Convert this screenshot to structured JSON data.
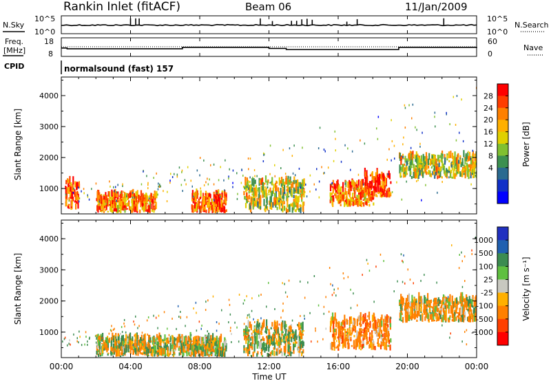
{
  "header": {
    "station": "Rankin Inlet (fitACF)",
    "beam": "Beam 06",
    "date": "11/Jan/2009"
  },
  "noise_panel": {
    "left_label": "N.Sky",
    "right_label": "N.Search",
    "left_ticks": [
      "10^5",
      "10^0"
    ],
    "right_ticks": [
      "10^5",
      "10^0"
    ]
  },
  "freq_panel": {
    "left_label_1": "Freq.",
    "left_label_2": "[MHz]",
    "right_label": "Nave",
    "left_ticks": [
      "18",
      "8"
    ],
    "right_ticks": [
      "60",
      "0"
    ]
  },
  "cpid": {
    "label": "CPID",
    "value": "normalsound (fast) 157"
  },
  "time_axis": {
    "label": "Time UT",
    "ticks": [
      "00:00",
      "04:00",
      "08:00",
      "12:00",
      "16:00",
      "20:00",
      "00:00"
    ]
  },
  "power_panel": {
    "ylabel": "Slant Range [km]",
    "yticks": [
      "4000",
      "3000",
      "2000",
      "1000"
    ],
    "colorbar_label": "Power [dB]",
    "colorbar_ticks": [
      "28",
      "24",
      "20",
      "16",
      "12",
      "8",
      "4"
    ],
    "colors": [
      "#ff0000",
      "#ff3d00",
      "#ff8000",
      "#ffb000",
      "#e0d000",
      "#80c030",
      "#3c9050",
      "#2a6a90",
      "#1030c8",
      "#0000ff"
    ]
  },
  "velocity_panel": {
    "ylabel": "Slant Range [km]",
    "yticks": [
      "4000",
      "3000",
      "2000",
      "1000"
    ],
    "colorbar_label": "Velocity [m s⁻¹]",
    "colorbar_ticks": [
      "1000",
      "500",
      "100",
      "25",
      "-25",
      "-100",
      "-500",
      "-1000"
    ],
    "colors": [
      "#2030c0",
      "#2060b0",
      "#3c8c50",
      "#60c040",
      "#c8c8c0",
      "#ffb000",
      "#ff8000",
      "#ff4000",
      "#ff0000"
    ]
  },
  "chart_data": [
    {
      "type": "line",
      "title": "N.Sky / N.Search",
      "x_range": [
        "00:00",
        "24:00"
      ],
      "ylim_left": [
        "10^0",
        "10^5"
      ],
      "series": [
        {
          "name": "N.Sky",
          "note": "noise level trace with spikes near 04:00, 13:00-14:00"
        }
      ]
    },
    {
      "type": "line",
      "title": "Freq. [MHz] / Nave",
      "x_range": [
        "00:00",
        "24:00"
      ],
      "ylim": [
        8,
        18
      ],
      "ylim_right": [
        0,
        60
      ],
      "series": [
        {
          "name": "Freq. [MHz]",
          "x": [
            "00:00",
            "00:20",
            "06:30",
            "07:00",
            "12:00",
            "13:00",
            "19:00",
            "19:30",
            "24:00"
          ],
          "values": [
            12.5,
            12.1,
            12.1,
            12.9,
            12.3,
            11.7,
            11.7,
            12.9,
            12.5
          ]
        },
        {
          "name": "Nave",
          "x": [
            "00:00",
            "24:00"
          ],
          "values": [
            30,
            30
          ]
        }
      ]
    },
    {
      "type": "heatmap",
      "title": "Power [dB]",
      "x_range": [
        "00:00",
        "24:00"
      ],
      "ylim": [
        180,
        4600
      ],
      "ylabel": "Slant Range [km]",
      "color_range": [
        0,
        30
      ],
      "regions": [
        {
          "t_start": 0.2,
          "t_end": 1.0,
          "range_start": 300,
          "range_end": 1300,
          "power": 26
        },
        {
          "t_start": 2.0,
          "t_end": 5.5,
          "range_start": 200,
          "range_end": 800,
          "power": 24
        },
        {
          "t_start": 7.5,
          "t_end": 9.5,
          "range_start": 200,
          "range_end": 800,
          "power": 26
        },
        {
          "t_start": 10.5,
          "t_end": 14.0,
          "range_start": 200,
          "range_end": 1300,
          "power": 18
        },
        {
          "t_start": 15.5,
          "t_end": 18.0,
          "range_start": 400,
          "range_end": 1200,
          "power": 24
        },
        {
          "t_start": 17.5,
          "t_end": 19.0,
          "range_start": 700,
          "range_end": 1500,
          "power": 28
        },
        {
          "t_start": 19.5,
          "t_end": 24.0,
          "range_start": 1300,
          "range_end": 2100,
          "power": 18
        }
      ]
    },
    {
      "type": "heatmap",
      "title": "Velocity [m s⁻¹]",
      "x_range": [
        "00:00",
        "24:00"
      ],
      "ylim": [
        180,
        4600
      ],
      "ylabel": "Slant Range [km]",
      "color_range": [
        -1000,
        1000
      ],
      "regions": [
        {
          "t_start": 2.0,
          "t_end": 9.5,
          "range_start": 200,
          "range_end": 800,
          "velocity": 0
        },
        {
          "t_start": 10.5,
          "t_end": 14.0,
          "range_start": 200,
          "range_end": 1300,
          "velocity": 50
        },
        {
          "t_start": 15.5,
          "t_end": 19.0,
          "range_start": 400,
          "range_end": 1500,
          "velocity": -300
        },
        {
          "t_start": 19.5,
          "t_end": 24.0,
          "range_start": 1300,
          "range_end": 2100,
          "velocity": -150
        }
      ]
    }
  ]
}
